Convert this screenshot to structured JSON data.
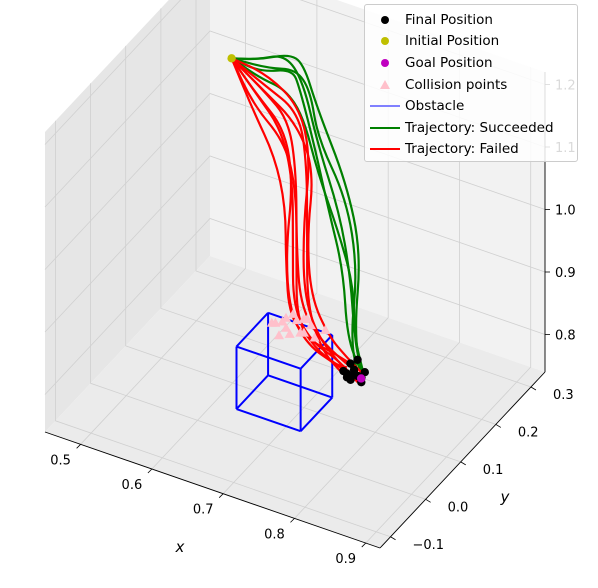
{
  "chart_data": {
    "type": "scatter",
    "projection": "3d",
    "xlabel": "x",
    "ylabel": "y",
    "zlabel": "",
    "xlim": [
      0.45,
      0.92
    ],
    "ylim": [
      -0.13,
      0.34
    ],
    "zlim": [
      0.74,
      1.22
    ],
    "x_ticks": [
      "0.5",
      "0.6",
      "0.7",
      "0.8",
      "0.9"
    ],
    "y_ticks": [
      "−0.1",
      "0.0",
      "0.1",
      "0.2",
      "0.3"
    ],
    "z_ticks": [
      "0.8",
      "0.9",
      "1.0",
      "1.1",
      "1.2"
    ],
    "grid": true,
    "legend_position": "top-right",
    "legend": [
      {
        "label": "Final Position",
        "kind": "dot",
        "color": "#000000"
      },
      {
        "label": "Initial Position",
        "kind": "dot",
        "color": "#bfbf00"
      },
      {
        "label": "Goal Position",
        "kind": "dot",
        "color": "#bf00bf"
      },
      {
        "label": "Collision points",
        "kind": "triangle",
        "color": "#ffc0cb"
      },
      {
        "label": "Obstacle",
        "kind": "line",
        "color": "#8080ff"
      },
      {
        "label": "Trajectory: Succeeded",
        "kind": "line",
        "color": "#008000"
      },
      {
        "label": "Trajectory: Failed",
        "kind": "line",
        "color": "#ff0000"
      }
    ],
    "colors": {
      "succeeded": "#008000",
      "failed": "#ff0000",
      "obstacle": "#0000ff",
      "final": "#000000",
      "initial": "#bfbf00",
      "goal": "#bf00bf",
      "collision": "#ffc0cb"
    },
    "initial_position": {
      "x": 0.5,
      "y": 0.3,
      "z": 1.1
    },
    "goal_position": {
      "x": 0.8,
      "y": 0.06,
      "z": 0.85
    },
    "obstacle_box": {
      "x": [
        0.63,
        0.72
      ],
      "y": [
        0.05,
        0.14
      ],
      "z": [
        0.74,
        0.84
      ]
    },
    "trajectories_succeeded": [
      {
        "x": [
          0.5,
          0.55,
          0.6,
          0.63,
          0.66,
          0.72,
          0.78,
          0.82,
          0.81
        ],
        "y": [
          0.3,
          0.28,
          0.26,
          0.24,
          0.22,
          0.18,
          0.1,
          0.0,
          0.04
        ],
        "z": [
          1.1,
          1.13,
          1.17,
          1.18,
          1.13,
          1.06,
          1.02,
          0.97,
          0.87
        ]
      },
      {
        "x": [
          0.5,
          0.56,
          0.61,
          0.64,
          0.67,
          0.73,
          0.78,
          0.81,
          0.8
        ],
        "y": [
          0.3,
          0.28,
          0.26,
          0.24,
          0.2,
          0.16,
          0.09,
          0.01,
          0.05
        ],
        "z": [
          1.1,
          1.12,
          1.15,
          1.14,
          1.1,
          1.05,
          1.0,
          0.95,
          0.86
        ]
      },
      {
        "x": [
          0.5,
          0.55,
          0.6,
          0.62,
          0.66,
          0.71,
          0.76,
          0.8,
          0.8
        ],
        "y": [
          0.3,
          0.28,
          0.27,
          0.25,
          0.21,
          0.15,
          0.09,
          0.02,
          0.06
        ],
        "z": [
          1.1,
          1.11,
          1.14,
          1.13,
          1.08,
          1.03,
          0.99,
          0.94,
          0.86
        ]
      },
      {
        "x": [
          0.5,
          0.54,
          0.59,
          0.63,
          0.67,
          0.73,
          0.78,
          0.82,
          0.81
        ],
        "y": [
          0.3,
          0.29,
          0.27,
          0.24,
          0.2,
          0.14,
          0.07,
          0.0,
          0.05
        ],
        "z": [
          1.1,
          1.12,
          1.16,
          1.15,
          1.09,
          1.04,
          1.0,
          0.96,
          0.86
        ]
      },
      {
        "x": [
          0.5,
          0.55,
          0.6,
          0.64,
          0.68,
          0.74,
          0.79,
          0.82,
          0.81
        ],
        "y": [
          0.3,
          0.28,
          0.25,
          0.22,
          0.18,
          0.12,
          0.06,
          0.0,
          0.05
        ],
        "z": [
          1.1,
          1.1,
          1.12,
          1.11,
          1.06,
          1.02,
          0.99,
          0.95,
          0.86
        ]
      }
    ],
    "trajectories_failed": [
      {
        "x": [
          0.5,
          0.56,
          0.61,
          0.64,
          0.66,
          0.68,
          0.72,
          0.77,
          0.79
        ],
        "y": [
          0.3,
          0.27,
          0.24,
          0.2,
          0.16,
          0.13,
          0.1,
          0.07,
          0.06
        ],
        "z": [
          1.1,
          1.09,
          1.08,
          1.03,
          0.95,
          0.88,
          0.86,
          0.86,
          0.86
        ]
      },
      {
        "x": [
          0.5,
          0.55,
          0.6,
          0.63,
          0.65,
          0.67,
          0.71,
          0.76,
          0.79
        ],
        "y": [
          0.3,
          0.27,
          0.24,
          0.21,
          0.17,
          0.13,
          0.1,
          0.07,
          0.05
        ],
        "z": [
          1.1,
          1.08,
          1.06,
          1.01,
          0.94,
          0.87,
          0.85,
          0.86,
          0.86
        ]
      },
      {
        "x": [
          0.5,
          0.55,
          0.61,
          0.64,
          0.66,
          0.68,
          0.72,
          0.76,
          0.78
        ],
        "y": [
          0.3,
          0.26,
          0.23,
          0.2,
          0.16,
          0.12,
          0.09,
          0.07,
          0.06
        ],
        "z": [
          1.1,
          1.07,
          1.05,
          1.0,
          0.93,
          0.86,
          0.85,
          0.85,
          0.86
        ]
      },
      {
        "x": [
          0.5,
          0.56,
          0.62,
          0.65,
          0.67,
          0.69,
          0.73,
          0.77,
          0.79
        ],
        "y": [
          0.3,
          0.27,
          0.25,
          0.21,
          0.17,
          0.13,
          0.09,
          0.06,
          0.05
        ],
        "z": [
          1.1,
          1.1,
          1.09,
          1.04,
          0.96,
          0.88,
          0.85,
          0.85,
          0.85
        ]
      },
      {
        "x": [
          0.5,
          0.55,
          0.6,
          0.63,
          0.65,
          0.67,
          0.71,
          0.75,
          0.78
        ],
        "y": [
          0.3,
          0.26,
          0.22,
          0.19,
          0.15,
          0.12,
          0.1,
          0.08,
          0.07
        ],
        "z": [
          1.1,
          1.06,
          1.03,
          0.98,
          0.92,
          0.86,
          0.85,
          0.86,
          0.86
        ]
      },
      {
        "x": [
          0.5,
          0.56,
          0.62,
          0.65,
          0.66,
          0.68,
          0.72,
          0.77,
          0.8
        ],
        "y": [
          0.3,
          0.28,
          0.25,
          0.22,
          0.18,
          0.14,
          0.1,
          0.07,
          0.05
        ],
        "z": [
          1.1,
          1.11,
          1.1,
          1.05,
          0.97,
          0.89,
          0.86,
          0.85,
          0.85
        ]
      },
      {
        "x": [
          0.5,
          0.55,
          0.61,
          0.64,
          0.65,
          0.67,
          0.71,
          0.76,
          0.79
        ],
        "y": [
          0.3,
          0.27,
          0.23,
          0.19,
          0.15,
          0.12,
          0.09,
          0.07,
          0.06
        ],
        "z": [
          1.1,
          1.08,
          1.07,
          1.02,
          0.94,
          0.87,
          0.85,
          0.85,
          0.85
        ]
      },
      {
        "x": [
          0.5,
          0.56,
          0.62,
          0.66,
          0.67,
          0.69,
          0.73,
          0.77,
          0.8
        ],
        "y": [
          0.3,
          0.27,
          0.24,
          0.21,
          0.17,
          0.14,
          0.11,
          0.08,
          0.06
        ],
        "z": [
          1.1,
          1.09,
          1.08,
          1.04,
          0.96,
          0.89,
          0.86,
          0.86,
          0.86
        ]
      }
    ],
    "collision_points": [
      {
        "x": 0.66,
        "y": 0.12,
        "z": 0.85
      },
      {
        "x": 0.67,
        "y": 0.11,
        "z": 0.85
      },
      {
        "x": 0.68,
        "y": 0.12,
        "z": 0.86
      },
      {
        "x": 0.69,
        "y": 0.11,
        "z": 0.85
      },
      {
        "x": 0.66,
        "y": 0.1,
        "z": 0.86
      },
      {
        "x": 0.67,
        "y": 0.13,
        "z": 0.86
      },
      {
        "x": 0.68,
        "y": 0.1,
        "z": 0.85
      },
      {
        "x": 0.7,
        "y": 0.12,
        "z": 0.86
      },
      {
        "x": 0.65,
        "y": 0.11,
        "z": 0.85
      },
      {
        "x": 0.69,
        "y": 0.13,
        "z": 0.86
      },
      {
        "x": 0.71,
        "y": 0.11,
        "z": 0.85
      },
      {
        "x": 0.67,
        "y": 0.09,
        "z": 0.85
      },
      {
        "x": 0.66,
        "y": 0.13,
        "z": 0.85
      },
      {
        "x": 0.7,
        "y": 0.1,
        "z": 0.86
      },
      {
        "x": 0.68,
        "y": 0.14,
        "z": 0.85
      },
      {
        "x": 0.72,
        "y": 0.12,
        "z": 0.86
      }
    ],
    "final_positions": [
      {
        "x": 0.79,
        "y": 0.06,
        "z": 0.86
      },
      {
        "x": 0.8,
        "y": 0.05,
        "z": 0.86
      },
      {
        "x": 0.78,
        "y": 0.06,
        "z": 0.85
      },
      {
        "x": 0.79,
        "y": 0.05,
        "z": 0.85
      },
      {
        "x": 0.8,
        "y": 0.04,
        "z": 0.87
      },
      {
        "x": 0.81,
        "y": 0.04,
        "z": 0.86
      },
      {
        "x": 0.78,
        "y": 0.07,
        "z": 0.86
      },
      {
        "x": 0.79,
        "y": 0.07,
        "z": 0.87
      },
      {
        "x": 0.8,
        "y": 0.06,
        "z": 0.85
      },
      {
        "x": 0.81,
        "y": 0.05,
        "z": 0.87
      },
      {
        "x": 0.79,
        "y": 0.04,
        "z": 0.86
      },
      {
        "x": 0.78,
        "y": 0.05,
        "z": 0.86
      }
    ]
  }
}
